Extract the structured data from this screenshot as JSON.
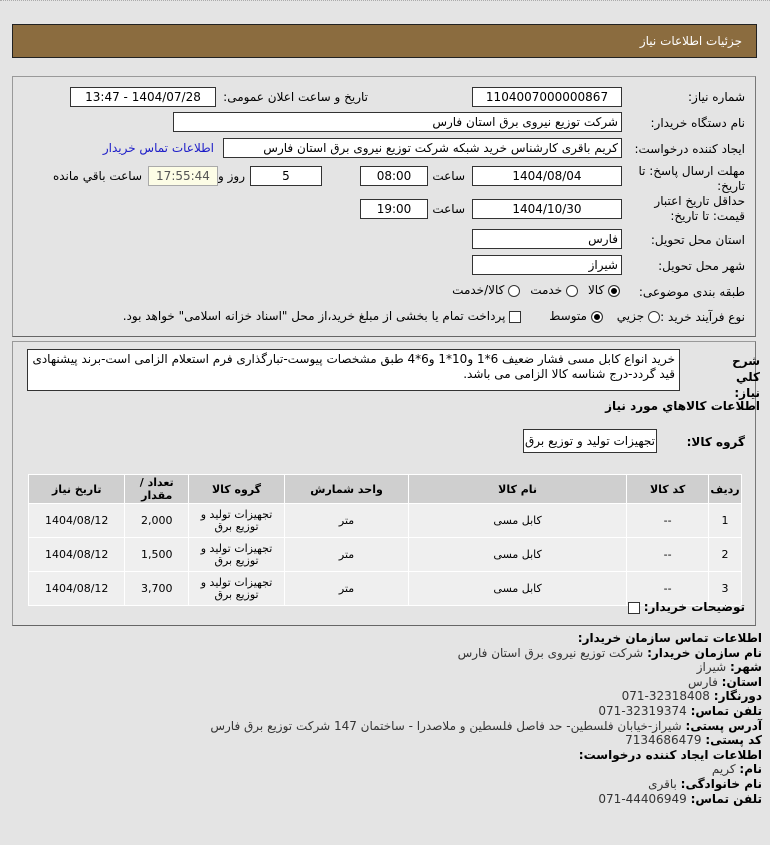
{
  "header": {
    "title": "جزئیات اطلاعات نیاز"
  },
  "form": {
    "need_number_label": "شماره نیاز:",
    "need_number": "1104007000000867",
    "announce_label": "تاریخ و ساعت اعلان عمومی:",
    "announce_value": "1404/07/28 - 13:47",
    "buyer_label": "نام دستگاه خریدار:",
    "buyer": "شرکت توزیع نیروی برق استان فارس",
    "creator_label": "ایجاد کننده درخواست:",
    "creator": "کریم باقری کارشناس خرید شبکه شرکت توزیع نیروی برق استان فارس",
    "contact_link": "اطلاعات تماس خریدار",
    "deadline_label": "مهلت ارسال پاسخ: تا تاریخ:",
    "deadline_date": "1404/08/04",
    "time_label": "ساعت",
    "deadline_time": "08:00",
    "days": "5",
    "days_label": "روز و",
    "remaining": "17:55:44",
    "remaining_label": "ساعت باقي مانده",
    "validity_label": "حداقل تاریخ اعتبار قیمت: تا تاریخ:",
    "validity_date": "1404/10/30",
    "validity_time": "19:00",
    "province_label": "استان محل تحویل:",
    "province": "فارس",
    "city_label": "شهر محل تحویل:",
    "city": "شیراز",
    "category_label": "طبقه بندی موضوعی:",
    "category_options": [
      "کالا",
      "خدمت",
      "کالا/خدمت"
    ],
    "category_selected": "کالا",
    "process_label": "نوع فرآیند خرید :",
    "process_options": [
      "جزیي",
      "متوسط"
    ],
    "process_selected": "متوسط",
    "payment_note": "پرداخت تمام یا بخشی از مبلغ خرید،از محل \"اسناد خزانه اسلامی\" خواهد بود."
  },
  "details": {
    "desc_label": "شرح کلي نیاز:",
    "description": "خرید انواع کابل مسی فشار ضعیف 6*1 و10*1 و6*4 طبق مشخصات پیوست-تبارگذاری فرم استعلام الزامی است-برند پیشنهادی قید گردد-درج شناسه کالا الزامی می باشد.",
    "goods_title": "اطلاعات کالاهاي مورد نیاز",
    "group_label": "گروه کالا:",
    "group": "تجهیزات تولید و توزیع برق",
    "columns": [
      "ردیف",
      "کد کالا",
      "نام کالا",
      "واحد شمارش",
      "گروه کالا",
      "تعداد / مقدار",
      "تاریخ نیاز"
    ],
    "rows": [
      [
        "1",
        "--",
        "کابل مسی",
        "متر",
        "تجهیزات تولید و توزیع برق",
        "2,000",
        "1404/08/12"
      ],
      [
        "2",
        "--",
        "کابل مسی",
        "متر",
        "تجهیزات تولید و توزیع برق",
        "1,500",
        "1404/08/12"
      ],
      [
        "3",
        "--",
        "کابل مسی",
        "متر",
        "تجهیزات تولید و توزیع برق",
        "3,700",
        "1404/08/12"
      ]
    ],
    "buyer_notes_label": "توضیحات خریدار:"
  },
  "contact": {
    "title": "اطلاعات تماس سازمان خریدار:",
    "lines": [
      {
        "k": "نام سازمان خریدار:",
        "v": "شرکت توزیع نیروی برق استان فارس"
      },
      {
        "k": "شهر:",
        "v": "شیراز"
      },
      {
        "k": "استان:",
        "v": "فارس"
      },
      {
        "k": "دورنگار:",
        "v": "32318408-071"
      },
      {
        "k": "تلفن تماس:",
        "v": "32319374-071"
      },
      {
        "k": "آدرس پستی:",
        "v": "شیراز-خیابان فلسطین- حد فاصل فلسطین و ملاصدرا - ساختمان 147 شرکت توزیع برق فارس"
      },
      {
        "k": "کد پستی:",
        "v": "7134686479"
      }
    ],
    "creator_title": "اطلاعات ایجاد کننده درخواست:",
    "creator_lines": [
      {
        "k": "نام:",
        "v": "کریم"
      },
      {
        "k": "نام خانوادگی:",
        "v": "باقری"
      },
      {
        "k": "تلفن تماس:",
        "v": "44406949-071"
      }
    ]
  },
  "colors": {
    "header_bg": "#8b6c3f",
    "link": "#1c1cc8"
  }
}
